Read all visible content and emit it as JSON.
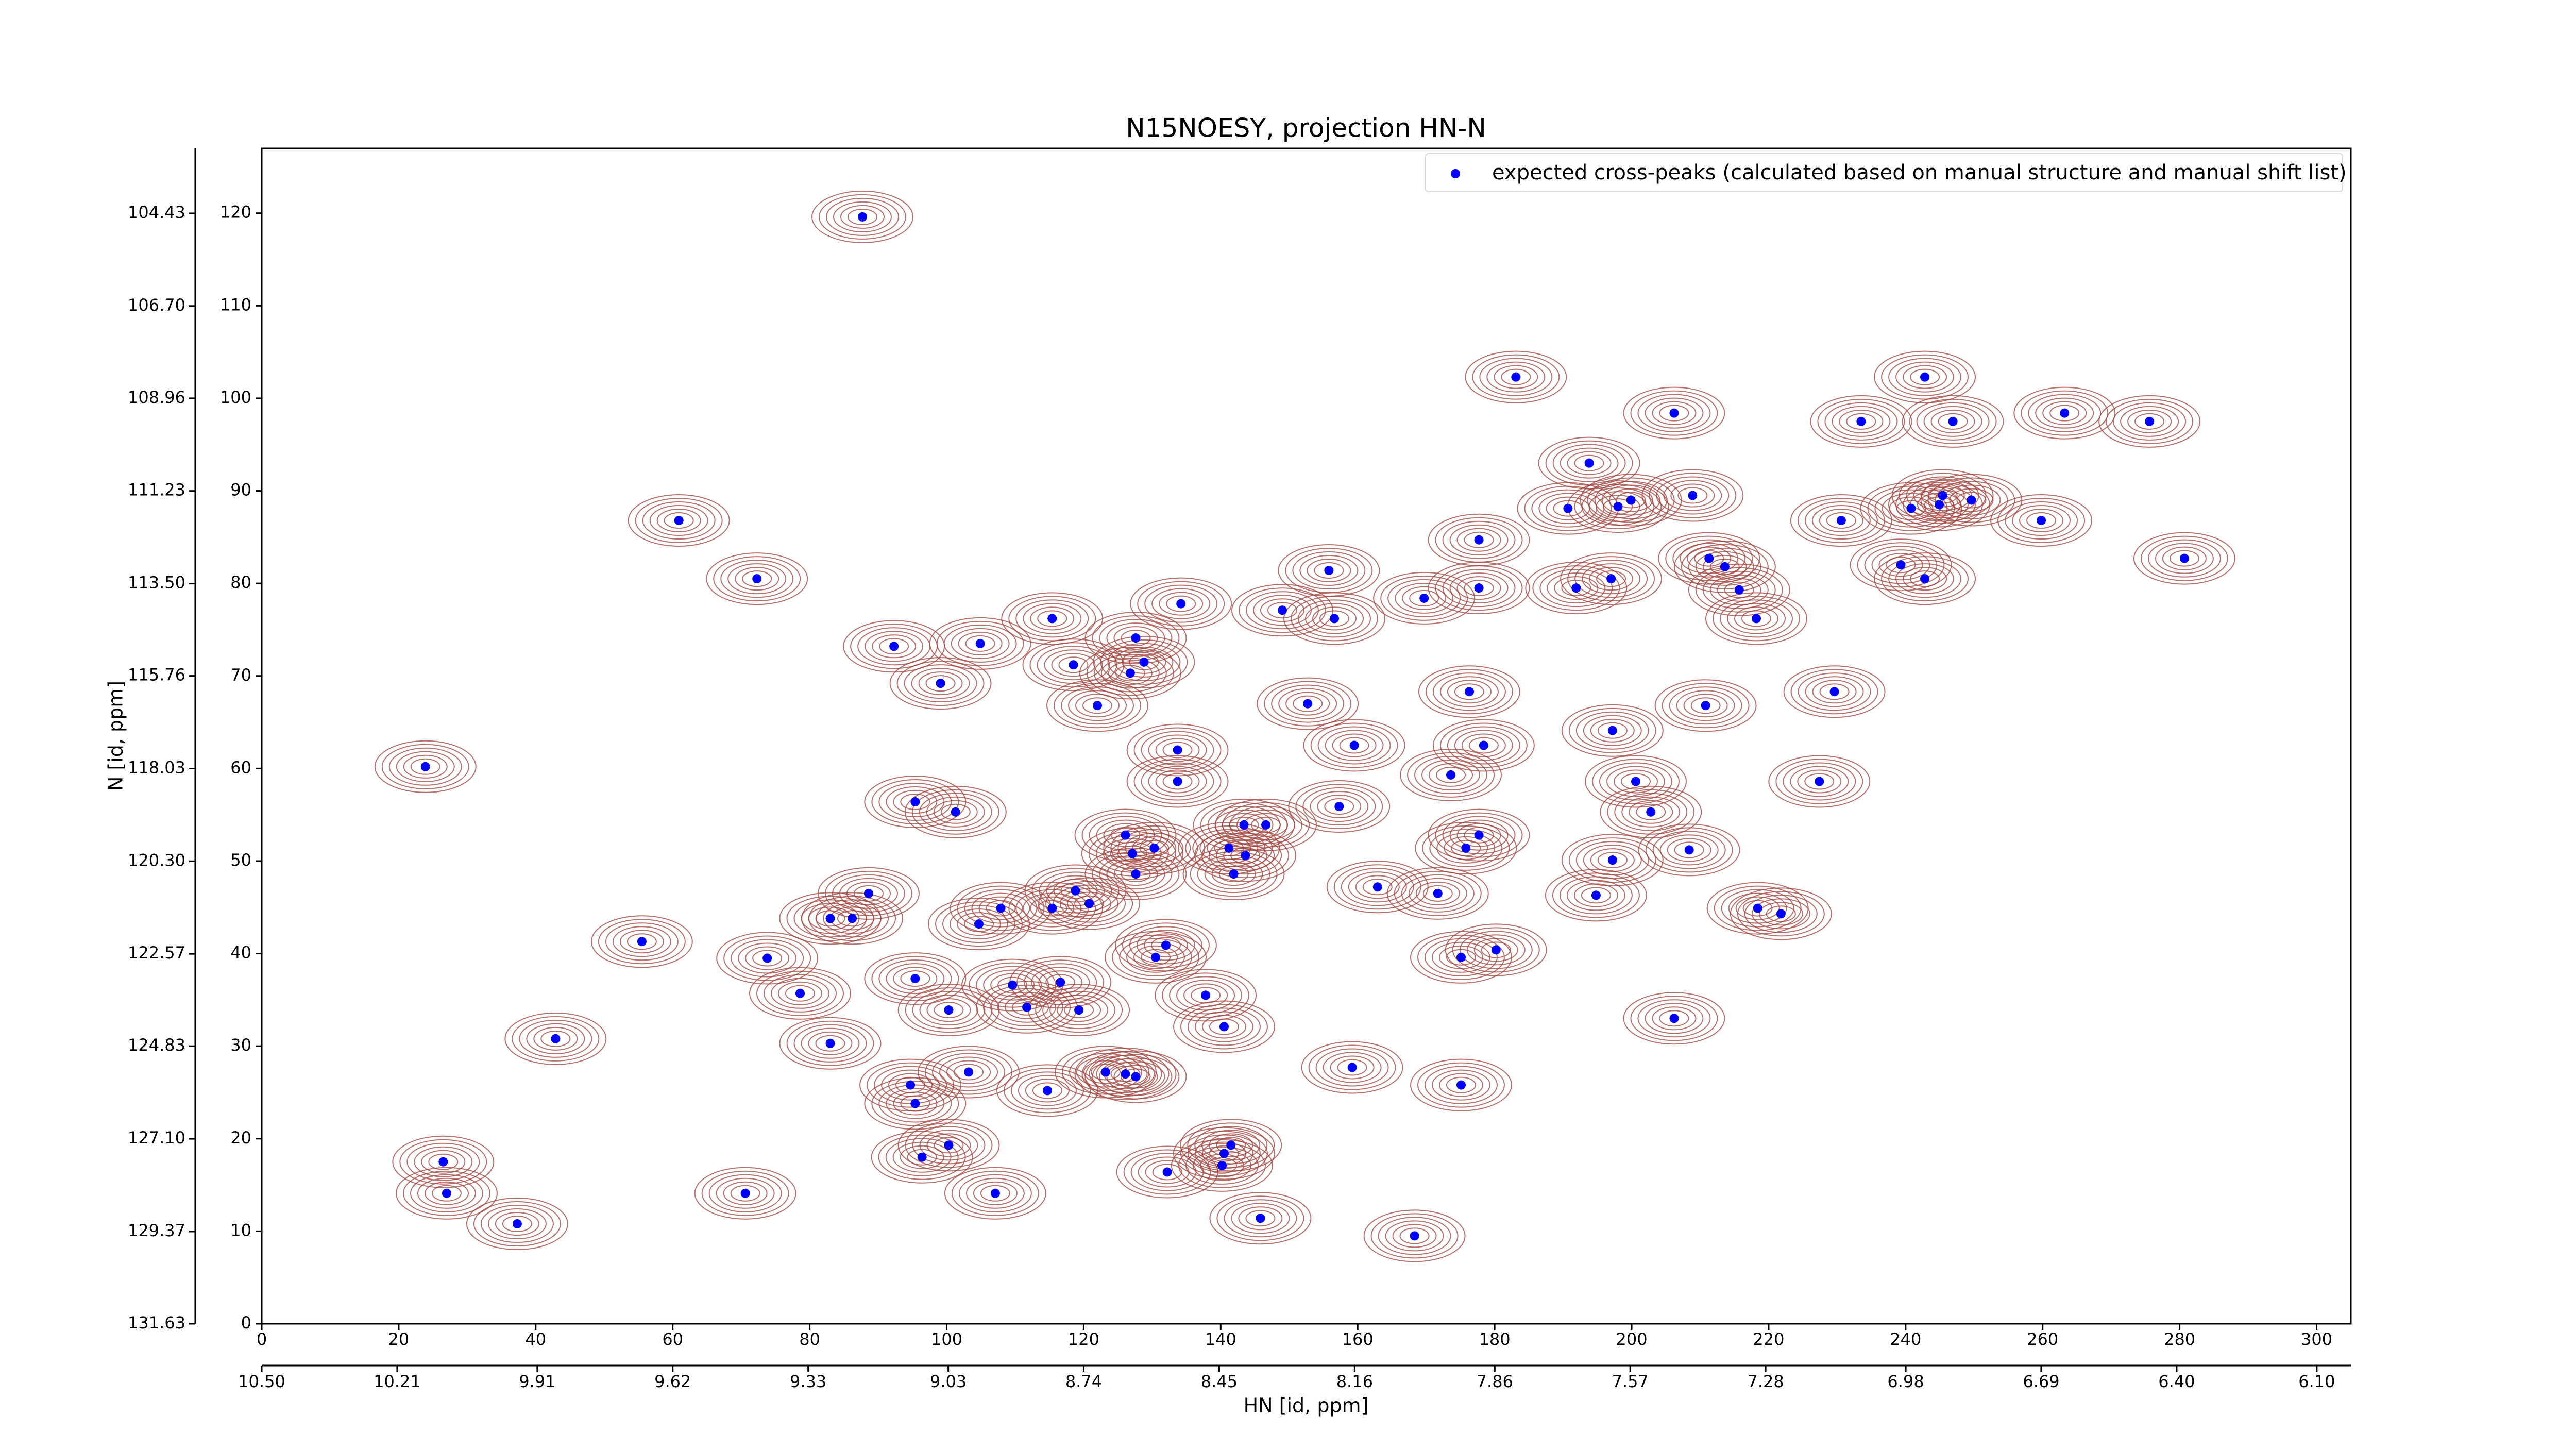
{
  "chart_data": {
    "type": "scatter",
    "title": "N15NOESY, projection HN-N",
    "xlabel": "HN [id, ppm]",
    "ylabel": "N [id, ppm]",
    "xlim": [
      0,
      305
    ],
    "ylim": [
      0,
      127
    ],
    "xticks": [
      0,
      20,
      40,
      60,
      80,
      100,
      120,
      140,
      160,
      180,
      200,
      220,
      240,
      260,
      280,
      300
    ],
    "yticks": [
      0,
      10,
      20,
      30,
      40,
      50,
      60,
      70,
      80,
      90,
      100,
      110,
      120
    ],
    "x2lim": [
      10.5,
      6.027
    ],
    "x2ticks": [
      {
        "value": 10.5,
        "label": "10.50"
      },
      10.21,
      9.91,
      9.62,
      9.33,
      9.03,
      8.74,
      8.45,
      8.16,
      7.86,
      7.57,
      7.28,
      6.98,
      6.69,
      {
        "value": 6.4,
        "label": "6.40"
      },
      {
        "value": 6.1,
        "label": "6.10"
      }
    ],
    "y2lim": [
      131.63,
      102.84
    ],
    "y2ticks": [
      131.63,
      129.37,
      {
        "value": 127.1,
        "label": "127.10"
      },
      124.83,
      122.57,
      {
        "value": 120.3,
        "label": "120.30"
      },
      118.03,
      115.76,
      {
        "value": 113.5,
        "label": "113.50"
      },
      111.23,
      108.96,
      {
        "value": 106.7,
        "label": "106.70"
      },
      104.43
    ],
    "grid": false,
    "legend": "upper right",
    "contour_color": "#a0403a",
    "series": [
      {
        "name": "expected cross-peaks (calculated based on manual structure and manual shift list)",
        "color": "#0000ff",
        "x": [
          87.7,
          183.1,
          242.8,
          206.2,
          233.5,
          246.9,
          263.2,
          275.6,
          193.8,
          208.9,
          190.7,
          198.0,
          199.9,
          240.8,
          244.9,
          245.4,
          249.6,
          230.6,
          259.8,
          60.9,
          177.7,
          280.7,
          211.3,
          213.6,
          239.3,
          155.8,
          242.8,
          72.3,
          197.0,
          191.9,
          177.7,
          215.7,
          169.7,
          134.2,
          149.0,
          115.4,
          156.6,
          218.2,
          104.9,
          127.6,
          92.3,
          118.5,
          128.8,
          126.8,
          99.1,
          176.3,
          229.6,
          122.0,
          152.7,
          210.8,
          197.2,
          23.9,
          133.7,
          159.5,
          178.4,
          173.6,
          133.7,
          200.6,
          227.4,
          95.4,
          101.3,
          157.3,
          202.8,
          143.4,
          146.6,
          126.1,
          177.7,
          130.3,
          141.2,
          175.8,
          208.4,
          127.1,
          143.6,
          197.2,
          127.6,
          141.9,
          88.6,
          162.9,
          118.8,
          171.7,
          194.8,
          107.9,
          115.4,
          120.8,
          218.4,
          221.8,
          83.0,
          86.2,
          104.7,
          55.5,
          132.0,
          73.8,
          130.5,
          175.1,
          180.2,
          95.4,
          109.6,
          116.6,
          78.6,
          137.8,
          100.3,
          111.7,
          119.3,
          206.2,
          140.5,
          42.9,
          83.0,
          159.2,
          103.2,
          123.2,
          126.1,
          127.6,
          94.7,
          114.7,
          175.1,
          95.4,
          100.3,
          141.5,
          140.5,
          96.4,
          26.5,
          140.2,
          132.2,
          27.0,
          70.6,
          107.1,
          145.8,
          37.3,
          168.3
        ],
        "y": [
          119.6,
          102.3,
          102.3,
          98.4,
          97.5,
          97.5,
          98.4,
          97.5,
          93.0,
          89.5,
          88.1,
          88.3,
          89.0,
          88.1,
          88.5,
          89.5,
          89.0,
          86.8,
          86.8,
          86.8,
          84.7,
          82.7,
          82.7,
          81.8,
          82.0,
          81.4,
          80.5,
          80.5,
          80.5,
          79.5,
          79.5,
          79.3,
          78.4,
          77.8,
          77.1,
          76.2,
          76.2,
          76.2,
          73.5,
          74.1,
          73.2,
          71.2,
          71.5,
          70.3,
          69.2,
          68.3,
          68.3,
          66.8,
          67.0,
          66.8,
          64.1,
          60.2,
          62.0,
          62.5,
          62.5,
          59.3,
          58.6,
          58.6,
          58.6,
          56.4,
          55.3,
          55.9,
          55.3,
          53.9,
          53.9,
          52.8,
          52.8,
          51.4,
          51.4,
          51.4,
          51.2,
          50.8,
          50.6,
          50.1,
          48.6,
          48.6,
          46.5,
          47.2,
          46.8,
          46.5,
          46.3,
          44.9,
          44.9,
          45.4,
          44.9,
          44.3,
          43.8,
          43.8,
          43.2,
          41.3,
          40.9,
          39.5,
          39.6,
          39.6,
          40.4,
          37.3,
          36.6,
          36.9,
          35.7,
          35.5,
          33.9,
          34.2,
          33.9,
          33.0,
          32.1,
          30.8,
          30.3,
          27.7,
          27.2,
          27.2,
          27.0,
          26.7,
          25.8,
          25.2,
          25.8,
          23.8,
          19.3,
          19.3,
          18.4,
          18.0,
          17.5,
          17.1,
          16.4,
          14.1,
          14.1,
          14.1,
          11.4,
          10.8,
          9.5
        ]
      }
    ]
  }
}
